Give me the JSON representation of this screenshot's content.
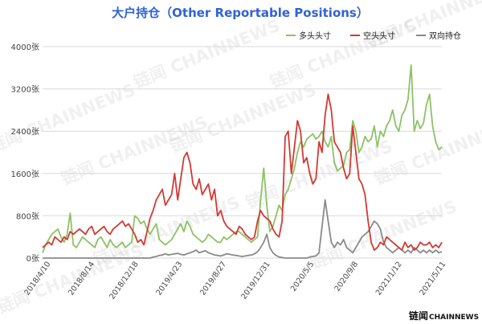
{
  "chart_data": {
    "type": "line",
    "title": "大户持仓（Other Reportable Positions）",
    "y_ticks": [
      "0张",
      "800张",
      "1600张",
      "2400张",
      "3200张",
      "4000张"
    ],
    "ylim": [
      0,
      4000
    ],
    "x_ticks": [
      "2018/4/10",
      "2018/8/14",
      "2018/12/18",
      "2019/4/23",
      "2019/8/27",
      "2019/12/31",
      "2020/5/5",
      "2020/9/8",
      "2021/1/12",
      "2021/5/11"
    ],
    "grid": true,
    "legend_position": "top-right",
    "series": [
      {
        "name": "多头头寸",
        "color": "#8cc265",
        "values": [
          100,
          250,
          350,
          450,
          500,
          550,
          400,
          300,
          450,
          850,
          250,
          200,
          300,
          400,
          350,
          300,
          250,
          200,
          350,
          400,
          300,
          200,
          350,
          250,
          200,
          250,
          300,
          200,
          250,
          300,
          800,
          750,
          650,
          700,
          550,
          450,
          550,
          650,
          350,
          300,
          250,
          300,
          350,
          450,
          550,
          650,
          500,
          700,
          600,
          450,
          400,
          350,
          300,
          350,
          450,
          400,
          350,
          300,
          300,
          400,
          350,
          400,
          450,
          500,
          500,
          450,
          400,
          350,
          300,
          350,
          400,
          1100,
          1700,
          1000,
          500,
          600,
          800,
          1000,
          900,
          1200,
          1300,
          1500,
          1700,
          2000,
          2200,
          2100,
          2250,
          2300,
          2350,
          2250,
          2300,
          2400,
          2200,
          2100,
          2300,
          1800,
          1650,
          1700,
          1750,
          2000,
          2050,
          2600,
          2400,
          2000,
          2100,
          2300,
          2200,
          2250,
          2500,
          2100,
          2400,
          2300,
          2500,
          2600,
          2800,
          2500,
          2400,
          2700,
          2800,
          3000,
          3650,
          2400,
          2600,
          2450,
          2550,
          2900,
          3100,
          2500,
          2200,
          2050,
          2100
        ]
      },
      {
        "name": "空头头寸",
        "color": "#d23a33",
        "values": [
          200,
          250,
          300,
          250,
          400,
          350,
          300,
          400,
          350,
          500,
          450,
          500,
          550,
          500,
          450,
          550,
          600,
          450,
          500,
          550,
          600,
          500,
          450,
          550,
          600,
          650,
          700,
          600,
          650,
          550,
          450,
          300,
          350,
          250,
          500,
          750,
          900,
          1100,
          1200,
          1300,
          1000,
          1100,
          1200,
          1600,
          1100,
          1500,
          1900,
          2000,
          1800,
          1400,
          1300,
          1500,
          1200,
          1300,
          1400,
          1100,
          1300,
          800,
          900,
          700,
          600,
          550,
          500,
          450,
          600,
          550,
          450,
          400,
          350,
          400,
          700,
          900,
          800,
          750,
          700,
          550,
          450,
          400,
          700,
          2300,
          2400,
          1600,
          2100,
          2600,
          2400,
          1800,
          1900,
          1600,
          1400,
          1500,
          2200,
          2000,
          2700,
          3100,
          2800,
          2200,
          2100,
          2000,
          1700,
          1500,
          1600,
          2500,
          2000,
          1500,
          1400,
          1200,
          700,
          300,
          150,
          200,
          300,
          250,
          400,
          350,
          300,
          250,
          200,
          150,
          300,
          200,
          250,
          150,
          200,
          300,
          250,
          250,
          300,
          200,
          250,
          200,
          300
        ]
      },
      {
        "name": "双向持仓",
        "color": "#8a8a8a",
        "values": [
          0,
          0,
          0,
          0,
          0,
          0,
          0,
          0,
          0,
          0,
          0,
          0,
          0,
          0,
          0,
          0,
          0,
          0,
          0,
          0,
          0,
          0,
          0,
          0,
          0,
          0,
          0,
          0,
          0,
          0,
          0,
          0,
          0,
          0,
          0,
          0,
          20,
          30,
          50,
          60,
          80,
          60,
          70,
          80,
          90,
          70,
          60,
          80,
          100,
          120,
          150,
          100,
          120,
          140,
          100,
          80,
          60,
          50,
          40,
          60,
          80,
          70,
          60,
          50,
          40,
          30,
          40,
          50,
          60,
          80,
          120,
          200,
          300,
          450,
          200,
          100,
          50,
          20,
          10,
          0,
          0,
          0,
          0,
          0,
          0,
          0,
          0,
          20,
          30,
          40,
          100,
          600,
          1100,
          700,
          300,
          200,
          300,
          250,
          350,
          200,
          150,
          100,
          200,
          300,
          400,
          450,
          500,
          600,
          700,
          650,
          550,
          300,
          200,
          150,
          100,
          150,
          200,
          150,
          100,
          150,
          100,
          200,
          150,
          100,
          150,
          100,
          150,
          100,
          150,
          100,
          120
        ]
      }
    ]
  },
  "watermark": {
    "text": "链闻 CHAINNEWS"
  },
  "footer": {
    "brand_cn": "链闻",
    "brand_en": "CHAINNEWS"
  }
}
